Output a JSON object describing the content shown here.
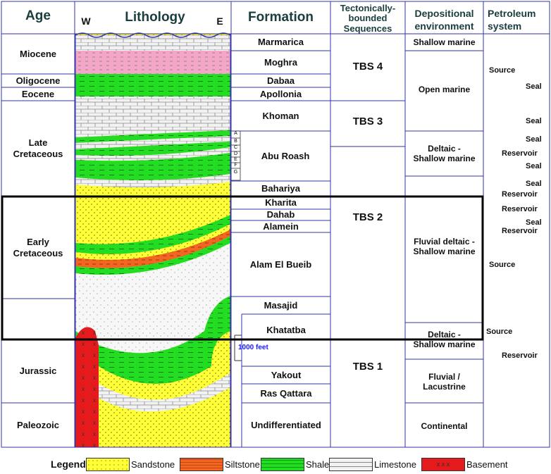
{
  "headers": {
    "age": "Age",
    "lithology": "Lithology",
    "west": "W",
    "east": "E",
    "formation": "Formation",
    "sequences": "Tectonically-\nbounded\nSequences",
    "environment": "Depositional\nenvironment",
    "petroleum": "Petroleum\nsystem"
  },
  "ages": {
    "miocene": "Miocene",
    "oligocene": "Oligocene",
    "eocene": "Eocene",
    "late_cretaceous": "Late\nCretaceous",
    "early_cretaceous": "Early\nCretaceous",
    "jurassic": "Jurassic",
    "paleozoic": "Paleozoic"
  },
  "formations": {
    "marmarica": "Marmarica",
    "moghra": "Moghra",
    "dabaa": "Dabaa",
    "apollonia": "Apollonia",
    "khoman": "Khoman",
    "abu_roash": "Abu Roash",
    "bahariya": "Bahariya",
    "kharita": "Kharita",
    "dahab": "Dahab",
    "alamein": "Alamein",
    "alam_el_bueib": "Alam El Bueib",
    "masajid": "Masajid",
    "khatatba": "Khatatba",
    "yakout": "Yakout",
    "ras_qattara": "Ras Qattara",
    "undifferentiated": "Undifferentiated"
  },
  "abu_roash_members": [
    "A",
    "B",
    "C",
    "D",
    "E",
    "F",
    "G"
  ],
  "sequences": {
    "tbs4": "TBS 4",
    "tbs3": "TBS 3",
    "tbs2": "TBS 2",
    "tbs1": "TBS 1"
  },
  "environments": {
    "shallow_marine": "Shallow marine",
    "open_marine": "Open marine",
    "deltaic_shallow_marine": "Deltaic -\nShallow marine",
    "fluvial_deltaic": "Fluvial deltaic -\nShallow marine",
    "deltaic_shallow_marine_2": "Deltaic -\nShallow marine",
    "fluvial_lacustrine": "Fluvial /\nLacustrine",
    "continental": "Continental"
  },
  "petroleum": {
    "source1": "Source",
    "seal1": "Seal",
    "seal2": "Seal",
    "seal3": "Seal",
    "reservoir1": "Reservoir",
    "seal4": "Seal",
    "seal5": "Seal",
    "reservoir2": "Reservoir",
    "reservoir3": "Reservoir",
    "seal6": "Seal",
    "reservoir4": "Reservoir",
    "source2": "Source",
    "source3": "Source",
    "reservoir5": "Reservoir"
  },
  "scale_label": "1000 feet",
  "legend": {
    "title": "Legend:",
    "sandstone": "Sandstone",
    "siltstone": "Siltstone",
    "shale": "Shale",
    "limestone": "Limestone",
    "basement": "Basement"
  },
  "colors": {
    "sandstone": "#ffff33",
    "siltstone": "#f26522",
    "shale": "#22dd22",
    "limestone": "#eeeeee",
    "basement": "#e41a1c",
    "marl": "#f4a6c8",
    "header_text": "#1a3d3d",
    "grid": "#3333aa"
  }
}
